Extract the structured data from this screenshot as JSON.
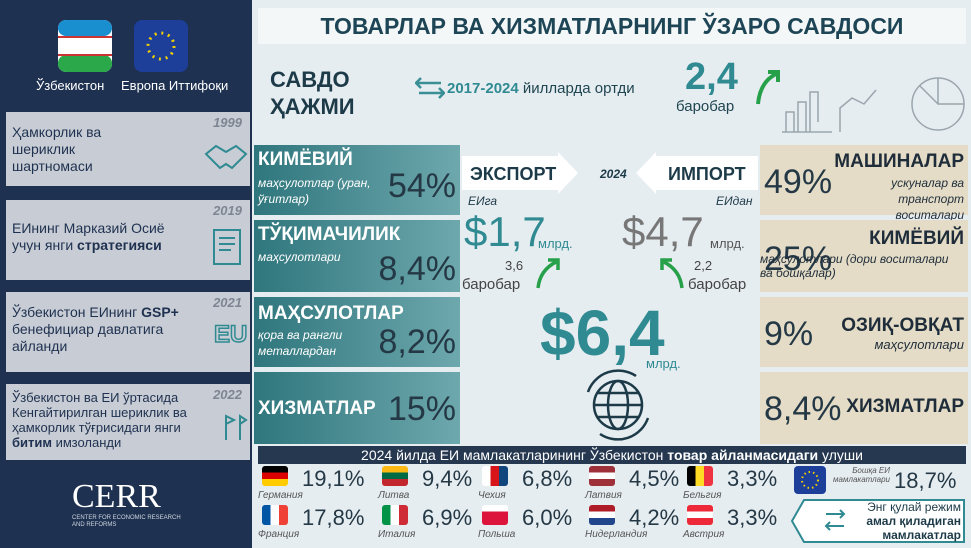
{
  "sidebar": {
    "countries": [
      "Ўзбекистон",
      "Европа Иттифоқи"
    ],
    "timeline": [
      {
        "year": "1999",
        "before": "Ҳамкорлик ва шериклик шартномаси"
      },
      {
        "year": "2019",
        "before": "ЕИнинг Марказий Осиё учун янги",
        "bold": "стратегияси"
      },
      {
        "year": "2021",
        "before": "Ўзбекистон ЕИнинг",
        "bold": "GSP+",
        "after": "бенефициар давлатига айланди"
      },
      {
        "year": "2022",
        "before": "Ўзбекистон ва ЕИ ўртасида Кенгайтирилган шериклик ва ҳамкорлик тўғрисидаги янги",
        "bold": "битим",
        "after": "имзоланди"
      }
    ],
    "logo": {
      "name": "CERR",
      "subtitle": "CENTER FOR ECONOMIC RESEARCH AND REFORMS"
    }
  },
  "header": {
    "title": "ТОВАРЛАР ВА ХИЗМАТЛАРНИНГ ЎЗАРО САВДОСИ"
  },
  "volume": {
    "label": "САВДО ҲАЖМИ",
    "period": "2017-2024",
    "text": "йилларда ортди",
    "value": "2,4",
    "unit": "баробар"
  },
  "exports": [
    {
      "title": "КИМЁВИЙ",
      "subtitle": "маҳсулотлар (уран, ўғитлар)",
      "share": "54%"
    },
    {
      "title": "ТЎҚИМАЧИЛИК",
      "subtitle": "маҳсулотлари",
      "share": "8,4%"
    },
    {
      "title": "МАҲСУЛОТЛАР",
      "subtitle": "қора ва рангли металлардан",
      "share": "8,2%"
    },
    {
      "title": "ХИЗМАТЛАР",
      "share": "15%"
    }
  ],
  "center": {
    "export": {
      "label": "ЭКСПОРТ",
      "to": "ЕИга",
      "value": "$1,7",
      "unit": "млрд.",
      "growth": "3,6",
      "growth_unit": "баробар"
    },
    "year": "2024",
    "import": {
      "label": "ИМПОРТ",
      "from": "ЕИдан",
      "value": "$4,7",
      "unit": "млрд.",
      "growth": "2,2",
      "growth_unit": "баробар"
    },
    "total": {
      "value": "$6,4",
      "unit": "млрд."
    }
  },
  "imports": [
    {
      "share": "49%",
      "title": "МАШИНАЛАР",
      "subtitle": "ускуналар ва транспорт воситалари"
    },
    {
      "share": "25%",
      "title": "КИМЁВИЙ",
      "subtitle": "маҳсулотлари (дори воситалари ва бошқалар)"
    },
    {
      "share": "9%",
      "title": "ОЗИҚ-ОВҚАТ",
      "subtitle": "маҳсулотлари"
    },
    {
      "share": "8,4%",
      "title": "ХИЗМАТЛАР"
    }
  ],
  "partners": {
    "heading": {
      "before": "2024 йилда ЕИ мамлакатларининг Ўзбекистон",
      "bold": "товар айланмасидаги",
      "after": "улуши"
    },
    "countries": [
      {
        "name": "Германия",
        "share": "19,1%"
      },
      {
        "name": "Литва",
        "share": "9,4%"
      },
      {
        "name": "Чехия",
        "share": "6,8%"
      },
      {
        "name": "Латвия",
        "share": "4,5%"
      },
      {
        "name": "Бельгия",
        "share": "3,3%"
      },
      {
        "name": "Франция",
        "share": "17,8%"
      },
      {
        "name": "Италия",
        "share": "6,9%"
      },
      {
        "name": "Польша",
        "share": "6,0%"
      },
      {
        "name": "Нидерландия",
        "share": "4,2%"
      },
      {
        "name": "Австрия",
        "share": "3,3%"
      }
    ],
    "other": {
      "name": "Бошқа ЕИ мамлакатлари",
      "share": "18,7%"
    },
    "note": {
      "line1": "Энг қулай режим",
      "line2": "амал қиладиган мамлакатлар"
    }
  }
}
